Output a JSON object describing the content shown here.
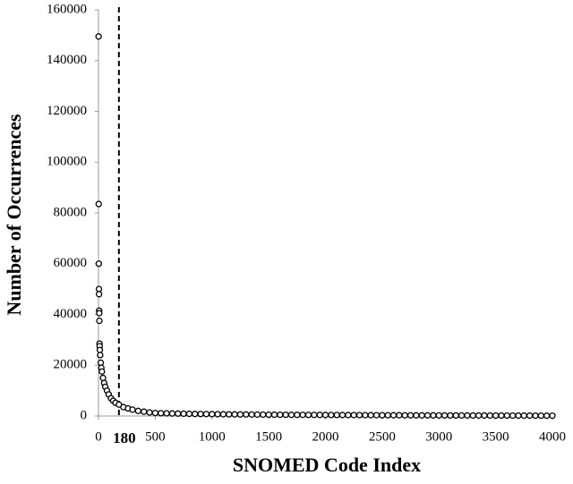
{
  "chart_data": {
    "type": "scatter",
    "xlabel": "SNOMED Code Index",
    "ylabel": "Number of Occurrences",
    "x": [
      1,
      2,
      3,
      4,
      5,
      6,
      7,
      8,
      9,
      10,
      12,
      15,
      20,
      25,
      30,
      40,
      50,
      60,
      75,
      90,
      110,
      130,
      150,
      180,
      220,
      260,
      300,
      350,
      400,
      450,
      500,
      550,
      600,
      650,
      700,
      750,
      800,
      850,
      900,
      950,
      1000,
      1050,
      1100,
      1150,
      1200,
      1250,
      1300,
      1350,
      1400,
      1450,
      1500,
      1550,
      1600,
      1650,
      1700,
      1750,
      1800,
      1850,
      1900,
      1950,
      2000,
      2050,
      2100,
      2150,
      2200,
      2250,
      2300,
      2350,
      2400,
      2450,
      2500,
      2550,
      2600,
      2650,
      2700,
      2750,
      2800,
      2850,
      2900,
      2950,
      3000,
      3050,
      3100,
      3150,
      3200,
      3250,
      3300,
      3350,
      3400,
      3450,
      3500,
      3550,
      3600,
      3650,
      3700,
      3750,
      3800,
      3850,
      3900,
      3950,
      4000
    ],
    "values": [
      149500,
      83500,
      60000,
      50000,
      48000,
      41500,
      40500,
      37500,
      28500,
      27500,
      26000,
      24000,
      21000,
      19000,
      17500,
      15000,
      13000,
      11500,
      10000,
      8500,
      7000,
      6000,
      5200,
      4500,
      3500,
      3000,
      2500,
      2000,
      1700,
      1400,
      1200,
      1100,
      1050,
      1000,
      950,
      900,
      860,
      820,
      790,
      760,
      730,
      700,
      680,
      660,
      640,
      620,
      600,
      580,
      560,
      540,
      520,
      500,
      490,
      480,
      470,
      460,
      450,
      440,
      430,
      420,
      410,
      400,
      390,
      380,
      370,
      360,
      350,
      340,
      330,
      320,
      310,
      300,
      290,
      280,
      270,
      260,
      250,
      245,
      240,
      235,
      230,
      225,
      220,
      215,
      210,
      205,
      200,
      195,
      190,
      185,
      180,
      175,
      170,
      165,
      160,
      155,
      150,
      140,
      130,
      115,
      100
    ],
    "color": "#000000",
    "xlim": [
      0,
      4000
    ],
    "xticks": [
      0,
      500,
      1000,
      1500,
      2000,
      2500,
      3000,
      3500,
      4000
    ],
    "ylim": [
      0,
      160000
    ],
    "yticks": [
      0,
      20000,
      40000,
      60000,
      80000,
      100000,
      120000,
      140000,
      160000
    ],
    "grid": false,
    "vline": {
      "x": 180
    }
  }
}
